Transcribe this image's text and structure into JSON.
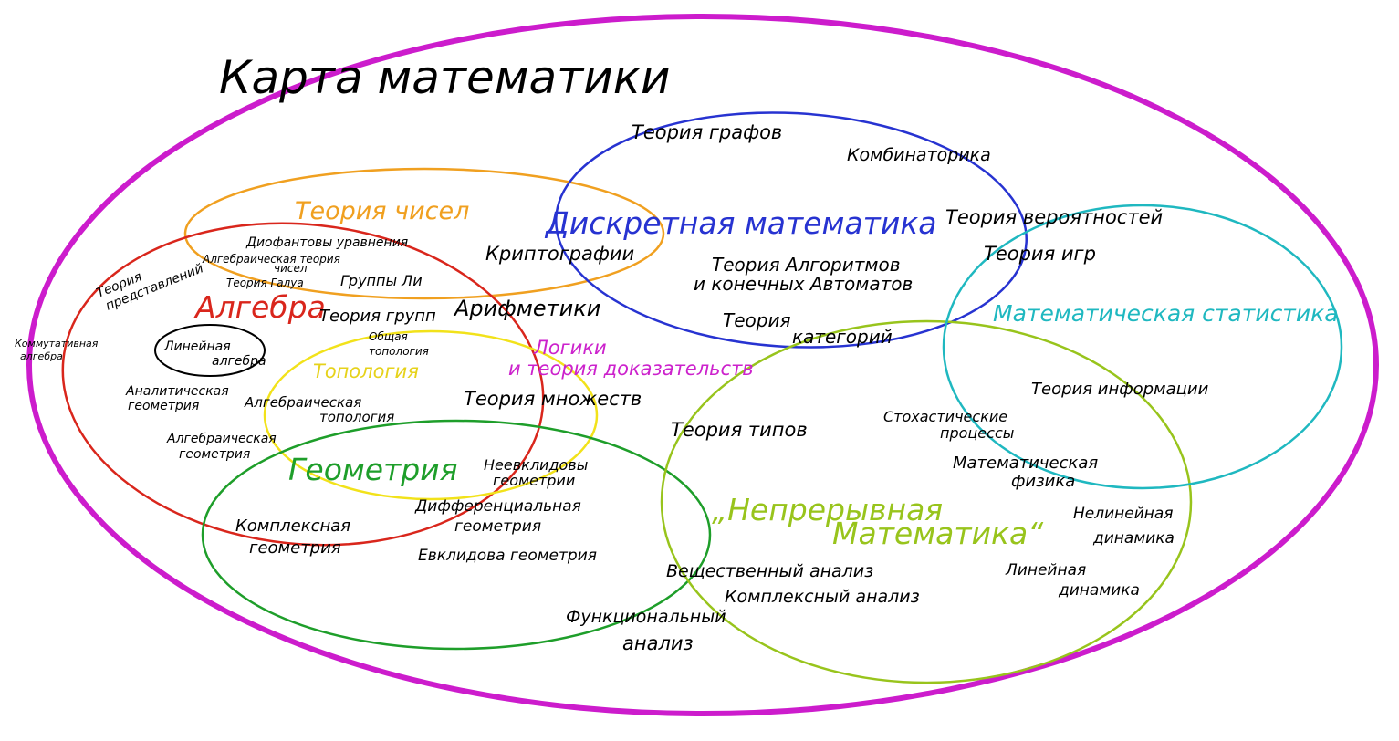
{
  "title": "Карта математики",
  "colors": {
    "outer": "#cc1ccc",
    "number_theory": "#f0a020",
    "algebra": "#d9261c",
    "discrete": "#2733d1",
    "topology": "#f2e21a",
    "geometry": "#1e9e2a",
    "continuous": "#98c41c",
    "statistics": "#1fb8c0",
    "logic": "#cc22cc",
    "ink": "#000000"
  },
  "regions": {
    "number_theory": "Теория чисел",
    "algebra": "Алгебра",
    "discrete": "Дискретная математика",
    "topology": "Топология",
    "geometry": "Геометрия",
    "continuous_line1": "„Непрерывная",
    "continuous_line2": "Математика“",
    "statistics": "Математическая статистика",
    "logic_line1": "Логики",
    "logic_line2": "и теория доказательств"
  },
  "topics": {
    "graph_theory": "Теория графов",
    "combinatorics": "Комбинаторика",
    "probability": "Теория вероятностей",
    "game_theory": "Теория игр",
    "cryptography": "Криптографии",
    "diophantine": "Диофантовы уравнения",
    "algebraic_nt_1": "Алгебраическая теория",
    "algebraic_nt_2": "чисел",
    "rep_theory_1": "Теория",
    "rep_theory_2": "представлений",
    "galois": "Теория Галуа",
    "lie_groups": "Группы Ли",
    "group_theory": "Теория групп",
    "arithmetic": "Арифметики",
    "algorithms_1": "Теория Алгоритмов",
    "algorithms_2": "и конечных Автоматов",
    "category_1": "Теория",
    "category_2": "категорий",
    "commutative_1": "Коммутативная",
    "commutative_2": "алгебра",
    "linear_algebra_1": "Линейная",
    "linear_algebra_2": "алгебра",
    "general_topology_1": "Общая",
    "general_topology_2": "топология",
    "analytic_geom_1": "Аналитическая",
    "analytic_geom_2": "геометрия",
    "algebraic_top_1": "Алгебраическая",
    "algebraic_top_2": "топология",
    "set_theory": "Теория множеств",
    "algebraic_geom_1": "Алгебраическая",
    "algebraic_geom_2": "геометрия",
    "type_theory": "Теория типов",
    "stochastic_1": "Стохастические",
    "stochastic_2": "процессы",
    "information_theory": "Теория информации",
    "math_physics_1": "Математическая",
    "math_physics_2": "физика",
    "non_euclid_1": "Неевклидовы",
    "non_euclid_2": "геометрии",
    "diff_geom_1": "Дифференциальная",
    "diff_geom_2": "геометрия",
    "complex_geom_1": "Комплексная",
    "complex_geom_2": "геометрия",
    "euclid_geom": "Евклидова геометрия",
    "nonlinear_dyn_1": "Нелинейная",
    "nonlinear_dyn_2": "динамика",
    "real_analysis": "Вещественный анализ",
    "complex_analysis": "Комплексный анализ",
    "linear_dyn_1": "Линейная",
    "linear_dyn_2": "динамика",
    "functional_1": "Функциональный",
    "functional_2": "анализ"
  }
}
